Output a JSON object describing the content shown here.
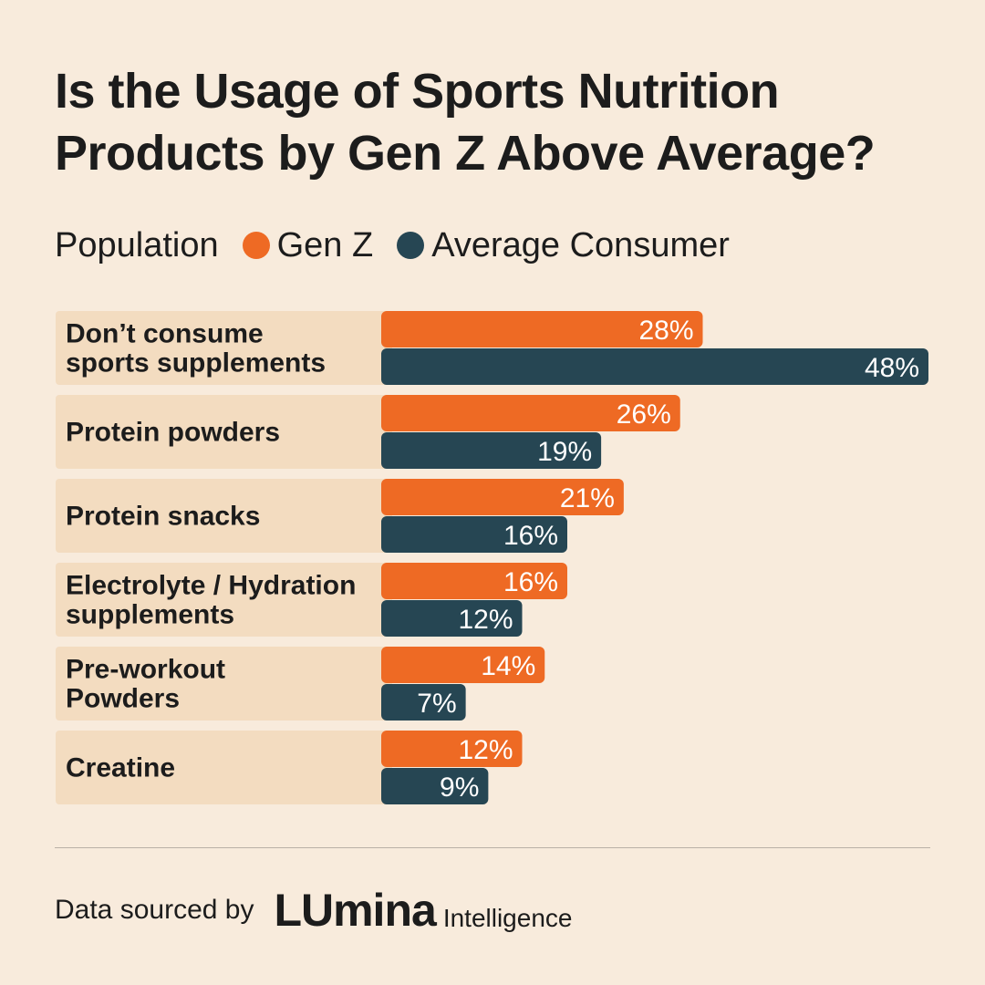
{
  "title_lines": [
    "Is the Usage of Sports Nutrition",
    "Products by Gen Z Above Average?"
  ],
  "legend": {
    "title": "Population",
    "items": [
      {
        "label": "Gen Z",
        "color": "#ee6a24"
      },
      {
        "label": "Average Consumer",
        "color": "#264653"
      }
    ]
  },
  "chart_data": {
    "type": "bar",
    "orientation": "horizontal",
    "title": "Is the Usage of Sports Nutrition Products by Gen Z Above Average?",
    "legend_title": "Population",
    "categories": [
      [
        "Don’t consume",
        "sports supplements"
      ],
      [
        "Protein powders"
      ],
      [
        "Protein snacks"
      ],
      [
        "Electrolyte / Hydration",
        "supplements"
      ],
      [
        "Pre-workout",
        "Powders"
      ],
      [
        "Creatine"
      ]
    ],
    "series": [
      {
        "name": "Gen Z",
        "color": "#ee6a24",
        "values": [
          28,
          26,
          21,
          16,
          14,
          12
        ],
        "labels": [
          "28%",
          "26%",
          "21%",
          "16%",
          "14%",
          "12%"
        ]
      },
      {
        "name": "Average Consumer",
        "color": "#264653",
        "values": [
          48,
          19,
          16,
          12,
          7,
          9
        ],
        "labels": [
          "48%",
          "19%",
          "16%",
          "12%",
          "7%",
          "9%"
        ]
      }
    ],
    "xlim": [
      0,
      48
    ],
    "unit": "%",
    "grid": false
  },
  "footer": {
    "source_text": "Data sourced by",
    "logo_main": "LUmina",
    "logo_sub": "Intelligence"
  },
  "colors": {
    "background": "#f8ebdc",
    "label_band": "#f3dcc0",
    "gen_z": "#ee6a24",
    "average": "#264653"
  }
}
